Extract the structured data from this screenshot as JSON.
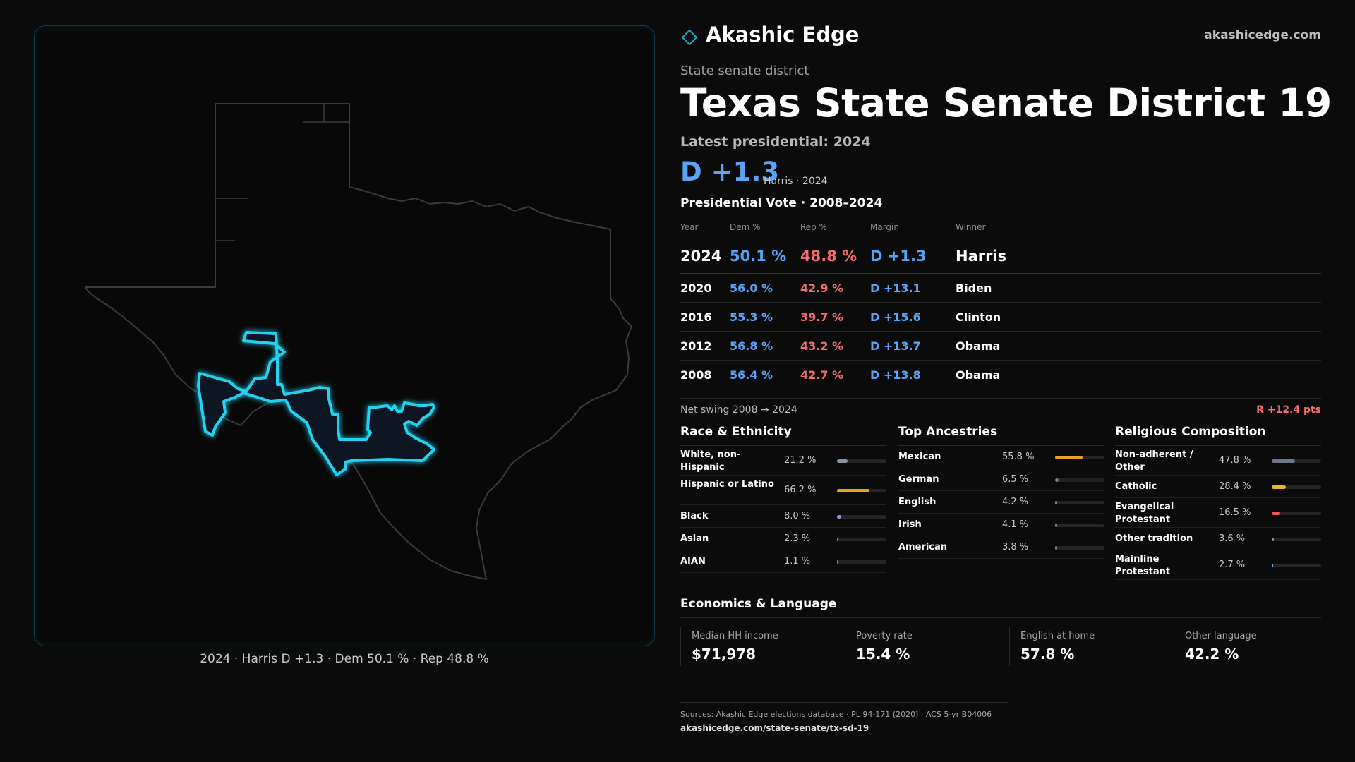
{
  "brand": {
    "name": "Akashic Edge",
    "url": "akashicedge.com",
    "logo_icon": "diamond-icon",
    "accent": "#1aa6c4"
  },
  "header": {
    "kicker": "State senate district",
    "title": "Texas  State Senate District 19",
    "latest_label": "Latest presidential: 2024",
    "big_margin": "D +1.3",
    "big_sub": "Harris · 2024"
  },
  "presidential": {
    "title": "Presidential Vote · 2008–2024",
    "columns": [
      "Year",
      "Dem %",
      "Rep %",
      "Margin",
      "Winner"
    ],
    "rows": [
      {
        "year": "2024",
        "dem": "50.1 %",
        "rep": "48.8 %",
        "margin": "D +1.3",
        "winner": "Harris"
      },
      {
        "year": "2020",
        "dem": "56.0 %",
        "rep": "42.9 %",
        "margin": "D +13.1",
        "winner": "Biden"
      },
      {
        "year": "2016",
        "dem": "55.3 %",
        "rep": "39.7 %",
        "margin": "D +15.6",
        "winner": "Clinton"
      },
      {
        "year": "2012",
        "dem": "56.8 %",
        "rep": "43.2 %",
        "margin": "D +13.7",
        "winner": "Obama"
      },
      {
        "year": "2008",
        "dem": "56.4 %",
        "rep": "42.7 %",
        "margin": "D +13.8",
        "winner": "Obama"
      }
    ],
    "swing_label": "Net swing 2008 → 2024",
    "swing_value": "R +12.4 pts"
  },
  "race": {
    "title": "Race & Ethnicity",
    "items": [
      {
        "label": "White, non-Hispanic",
        "value": "21.2 %",
        "share": 0.212,
        "color": "#8b93a3"
      },
      {
        "label": "Hispanic or Latino",
        "value": "66.2 %",
        "share": 0.662,
        "color": "#e8a21c"
      },
      {
        "label": "Black",
        "value": "8.0 %",
        "share": 0.08,
        "color": "#9b8ae0"
      },
      {
        "label": "Asian",
        "value": "2.3 %",
        "share": 0.023,
        "color": "#3fbf8a"
      },
      {
        "label": "AIAN",
        "value": "1.1 %",
        "share": 0.011,
        "color": "#d9763a"
      }
    ]
  },
  "ancestry": {
    "title": "Top Ancestries",
    "items": [
      {
        "label": "Mexican",
        "value": "55.8 %",
        "share": 0.558,
        "color": "#e8a21c"
      },
      {
        "label": "German",
        "value": "6.5 %",
        "share": 0.065,
        "color": "#7d7d7d"
      },
      {
        "label": "English",
        "value": "4.2 %",
        "share": 0.042,
        "color": "#7d7d7d"
      },
      {
        "label": "Irish",
        "value": "4.1 %",
        "share": 0.041,
        "color": "#7d7d7d"
      },
      {
        "label": "American",
        "value": "3.8 %",
        "share": 0.038,
        "color": "#7d7d7d"
      }
    ]
  },
  "religion": {
    "title": "Religious Composition",
    "items": [
      {
        "label": "Non-adherent / Other",
        "value": "47.8 %",
        "share": 0.478,
        "color": "#6d7688"
      },
      {
        "label": "Catholic",
        "value": "28.4 %",
        "share": 0.284,
        "color": "#e8b62a"
      },
      {
        "label": "Evangelical Protestant",
        "value": "16.5 %",
        "share": 0.165,
        "color": "#e05a5a"
      },
      {
        "label": "Other tradition",
        "value": "3.6 %",
        "share": 0.036,
        "color": "#8f8f8f"
      },
      {
        "label": "Mainline Protestant",
        "value": "2.7 %",
        "share": 0.027,
        "color": "#5aa3f5"
      }
    ]
  },
  "economics": {
    "title": "Economics & Language",
    "items": [
      {
        "label": "Median HH income",
        "value": "$71,978"
      },
      {
        "label": "Poverty rate",
        "value": "15.4 %"
      },
      {
        "label": "English at home",
        "value": "57.8 %"
      },
      {
        "label": "Other language",
        "value": "42.2 %"
      }
    ]
  },
  "map": {
    "caption": "2024 · Harris D +1.3 · Dem 50.1 % · Rep 48.8 %",
    "district_color": "#22d3f0",
    "state_outline_color": "#3a3a3a"
  },
  "footer": {
    "sources": "Sources: Akashic Edge elections database · PL 94-171 (2020) · ACS 5-yr B04006",
    "link": "akashicedge.com/state-senate/tx-sd-19"
  }
}
